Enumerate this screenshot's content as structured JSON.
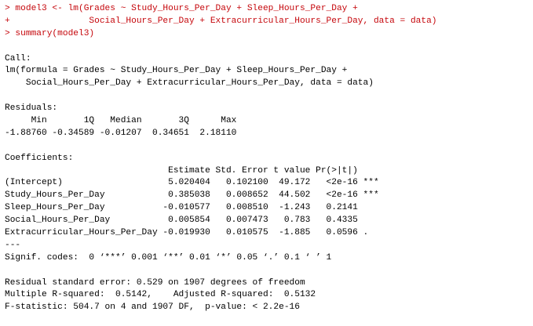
{
  "colors": {
    "input": "#c5060b",
    "output": "#000000",
    "background": "#ffffff"
  },
  "console": {
    "lines": [
      {
        "kind": "input",
        "text": "> model3 <- lm(Grades ~ Study_Hours_Per_Day + Sleep_Hours_Per_Day +"
      },
      {
        "kind": "input",
        "text": "+               Social_Hours_Per_Day + Extracurricular_Hours_Per_Day, data = data)"
      },
      {
        "kind": "input",
        "text": "> summary(model3)"
      },
      {
        "kind": "blank",
        "text": ""
      },
      {
        "kind": "output",
        "text": "Call:"
      },
      {
        "kind": "output",
        "text": "lm(formula = Grades ~ Study_Hours_Per_Day + Sleep_Hours_Per_Day +"
      },
      {
        "kind": "output",
        "text": "    Social_Hours_Per_Day + Extracurricular_Hours_Per_Day, data = data)"
      },
      {
        "kind": "blank",
        "text": ""
      },
      {
        "kind": "output",
        "text": "Residuals:"
      },
      {
        "kind": "output",
        "text": "     Min       1Q   Median       3Q      Max "
      },
      {
        "kind": "output",
        "text": "-1.88760 -0.34589 -0.01207  0.34651  2.18110 "
      },
      {
        "kind": "blank",
        "text": ""
      },
      {
        "kind": "output",
        "text": "Coefficients:"
      },
      {
        "kind": "output",
        "text": "                               Estimate Std. Error t value Pr(>|t|)    "
      },
      {
        "kind": "output",
        "text": "(Intercept)                    5.020404   0.102100  49.172   <2e-16 ***"
      },
      {
        "kind": "output",
        "text": "Study_Hours_Per_Day            0.385038   0.008652  44.502   <2e-16 ***"
      },
      {
        "kind": "output",
        "text": "Sleep_Hours_Per_Day           -0.010577   0.008510  -1.243   0.2141    "
      },
      {
        "kind": "output",
        "text": "Social_Hours_Per_Day           0.005854   0.007473   0.783   0.4335    "
      },
      {
        "kind": "output",
        "text": "Extracurricular_Hours_Per_Day -0.019930   0.010575  -1.885   0.0596 .  "
      },
      {
        "kind": "output",
        "text": "---"
      },
      {
        "kind": "output",
        "text": "Signif. codes:  0 ‘***’ 0.001 ‘**’ 0.01 ‘*’ 0.05 ‘.’ 0.1 ‘ ’ 1"
      },
      {
        "kind": "blank",
        "text": ""
      },
      {
        "kind": "output",
        "text": "Residual standard error: 0.529 on 1907 degrees of freedom"
      },
      {
        "kind": "output",
        "text": "Multiple R-squared:  0.5142,\tAdjusted R-squared:  0.5132 "
      },
      {
        "kind": "output",
        "text": "F-statistic: 504.7 on 4 and 1907 DF,  p-value: < 2.2e-16"
      }
    ]
  }
}
